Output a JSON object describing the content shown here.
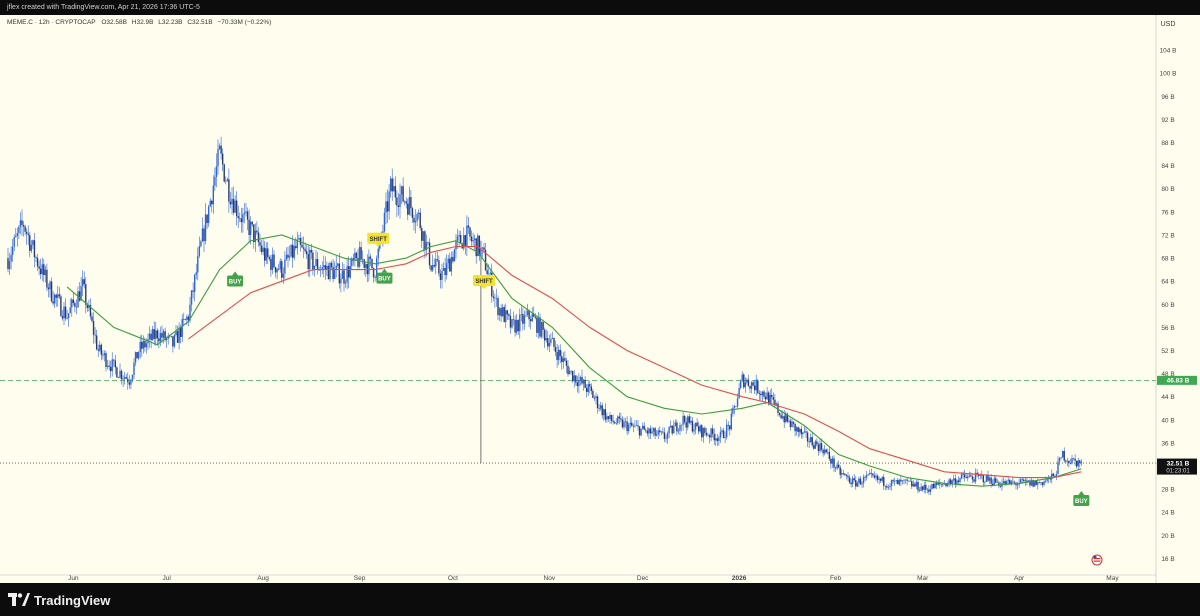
{
  "header": {
    "attribution": "jflex created with TradingView.com, Apr 21, 2026 17:36 UTC-5"
  },
  "footer": {
    "brand": "TradingView",
    "logo_icon": "tradingview-logo-icon"
  },
  "colors": {
    "background": "#fefdee",
    "candle": "#2f64d8",
    "sma_green": "#3f9c3f",
    "sma_red": "#e04f4f",
    "buy_marker": "#45a24a",
    "shift_marker": "#f4e22c",
    "level_line": "#3fa853"
  },
  "chart_data": {
    "type": "candlestick",
    "symbol_line": {
      "symbol": "MEME.C · 12h · CRYPTOCAP",
      "open": "O32.58B",
      "high": "H32.9B",
      "low": "L32.23B",
      "close": "C32.51B",
      "change": "−70.33M (−0.22%)"
    },
    "currency": "USD",
    "y_unit": "B",
    "ylim": [
      14,
      108
    ],
    "y_ticks": [
      16,
      20,
      24,
      28,
      32,
      36,
      40,
      44,
      48,
      52,
      56,
      60,
      64,
      68,
      72,
      76,
      80,
      84,
      88,
      92,
      96,
      100,
      104
    ],
    "y_tick_labels": [
      "16 B",
      "20 B",
      "24 B",
      "28 B",
      "32 B",
      "36 B",
      "40 B",
      "44 B",
      "48 B",
      "52 B",
      "56 B",
      "60 B",
      "64 B",
      "68 B",
      "72 B",
      "76 B",
      "80 B",
      "84 B",
      "88 B",
      "92 B",
      "96 B",
      "100 B",
      "104 B"
    ],
    "x_range": [
      "2025-05-11",
      "2026-05-15"
    ],
    "x_ticks": [
      {
        "date": "2025-06-01",
        "label": "Jun"
      },
      {
        "date": "2025-07-01",
        "label": "Jul"
      },
      {
        "date": "2025-08-01",
        "label": "Aug"
      },
      {
        "date": "2025-09-01",
        "label": "Sep"
      },
      {
        "date": "2025-10-01",
        "label": "Oct"
      },
      {
        "date": "2025-11-01",
        "label": "Nov"
      },
      {
        "date": "2025-12-01",
        "label": "Dec"
      },
      {
        "date": "2026-01-01",
        "label": "2026"
      },
      {
        "date": "2026-02-01",
        "label": "Feb"
      },
      {
        "date": "2026-03-01",
        "label": "Mar"
      },
      {
        "date": "2026-04-01",
        "label": "Apr"
      },
      {
        "date": "2026-05-01",
        "label": "May"
      }
    ],
    "price_series": {
      "dates": [
        "2025-05-11",
        "2025-05-16",
        "2025-05-20",
        "2025-05-25",
        "2025-05-30",
        "2025-06-04",
        "2025-06-09",
        "2025-06-14",
        "2025-06-19",
        "2025-06-22",
        "2025-06-28",
        "2025-07-03",
        "2025-07-08",
        "2025-07-12",
        "2025-07-15",
        "2025-07-18",
        "2025-07-21",
        "2025-07-24",
        "2025-07-28",
        "2025-08-02",
        "2025-08-07",
        "2025-08-12",
        "2025-08-17",
        "2025-08-22",
        "2025-08-27",
        "2025-09-01",
        "2025-09-06",
        "2025-09-11",
        "2025-09-16",
        "2025-09-20",
        "2025-09-24",
        "2025-09-28",
        "2025-10-02",
        "2025-10-05",
        "2025-10-09",
        "2025-10-11",
        "2025-10-15",
        "2025-10-20",
        "2025-10-26",
        "2025-11-02",
        "2025-11-08",
        "2025-11-14",
        "2025-11-20",
        "2025-11-26",
        "2025-12-02",
        "2025-12-08",
        "2025-12-14",
        "2025-12-20",
        "2025-12-26",
        "2025-12-29",
        "2026-01-02",
        "2026-01-06",
        "2026-01-10",
        "2026-01-16",
        "2026-01-22",
        "2026-01-28",
        "2026-02-02",
        "2026-02-07",
        "2026-02-12",
        "2026-02-18",
        "2026-02-24",
        "2026-03-02",
        "2026-03-08",
        "2026-03-14",
        "2026-03-20",
        "2026-03-26",
        "2026-04-01",
        "2026-04-07",
        "2026-04-12",
        "2026-04-15",
        "2026-04-17",
        "2026-04-21"
      ],
      "close": [
        68,
        74,
        68,
        62,
        58,
        63,
        52,
        49,
        47,
        52,
        55,
        53,
        58,
        70,
        78,
        86,
        80,
        76,
        73,
        68,
        66,
        70,
        67,
        66,
        65,
        68,
        66,
        80,
        78,
        75,
        67,
        65,
        70,
        72,
        70,
        68,
        60,
        56,
        58,
        53,
        48,
        45,
        40,
        39,
        38,
        37,
        40,
        38,
        37,
        39,
        47,
        46,
        44,
        40,
        37,
        35,
        31,
        29,
        30,
        29,
        29,
        28,
        29,
        30,
        30,
        29,
        29,
        29,
        30,
        34,
        33,
        32.51
      ]
    },
    "sma_green": {
      "dates": [
        "2025-05-30",
        "2025-06-14",
        "2025-06-28",
        "2025-07-08",
        "2025-07-18",
        "2025-07-28",
        "2025-08-07",
        "2025-08-17",
        "2025-08-27",
        "2025-09-06",
        "2025-09-16",
        "2025-09-24",
        "2025-10-02",
        "2025-10-09",
        "2025-10-20",
        "2025-11-02",
        "2025-11-14",
        "2025-11-26",
        "2025-12-08",
        "2025-12-20",
        "2026-01-02",
        "2026-01-10",
        "2026-01-22",
        "2026-02-02",
        "2026-02-12",
        "2026-02-24",
        "2026-03-08",
        "2026-03-20",
        "2026-04-01",
        "2026-04-12",
        "2026-04-21"
      ],
      "values": [
        63,
        56,
        53,
        57,
        66,
        71,
        72,
        70,
        68,
        67,
        68,
        70,
        71,
        69,
        61,
        56,
        49,
        44,
        42,
        41,
        42,
        43,
        39,
        34,
        32,
        30,
        29,
        28.5,
        29,
        30,
        31.5
      ]
    },
    "sma_red": {
      "dates": [
        "2025-07-08",
        "2025-07-18",
        "2025-07-28",
        "2025-08-07",
        "2025-08-17",
        "2025-08-27",
        "2025-09-06",
        "2025-09-16",
        "2025-09-24",
        "2025-10-02",
        "2025-10-09",
        "2025-10-20",
        "2025-11-02",
        "2025-11-14",
        "2025-11-26",
        "2025-12-08",
        "2025-12-20",
        "2026-01-02",
        "2026-01-10",
        "2026-01-22",
        "2026-02-02",
        "2026-02-12",
        "2026-02-24",
        "2026-03-08",
        "2026-03-20",
        "2026-04-01",
        "2026-04-12",
        "2026-04-21"
      ],
      "values": [
        54,
        58,
        62,
        64,
        66,
        66,
        66,
        67,
        69,
        70,
        70,
        65,
        61,
        56,
        52,
        49,
        46,
        44,
        43,
        41,
        38,
        35,
        33,
        31,
        30.5,
        30,
        30,
        31
      ]
    },
    "markers": [
      {
        "type": "buy",
        "label": "BUY",
        "date": "2025-07-23",
        "price": 65.5,
        "side": "below-arrow-up"
      },
      {
        "type": "shift",
        "label": "SHIFT",
        "date": "2025-09-07",
        "price": 70.3,
        "side": "above"
      },
      {
        "type": "buy",
        "label": "BUY",
        "date": "2025-09-09",
        "price": 66.0,
        "side": "below-arrow-up"
      },
      {
        "type": "shift",
        "label": "SHIFT",
        "date": "2025-10-11",
        "price": 63.0,
        "side": "above"
      },
      {
        "type": "buy",
        "label": "BUY",
        "date": "2026-04-21",
        "price": 27.5,
        "side": "below-arrow-up"
      }
    ],
    "horizontal_levels": [
      {
        "value": 46.83,
        "label": "46.83 B",
        "style": "dashed",
        "color": "#3fa853"
      },
      {
        "value": 32.51,
        "label": "32.51 B",
        "sublabel": "01:23:01",
        "style": "dotted",
        "color": "#555555"
      }
    ],
    "vertical_lines": [
      {
        "date": "2025-10-10",
        "from": 32.5,
        "to": 71.0
      }
    ]
  }
}
